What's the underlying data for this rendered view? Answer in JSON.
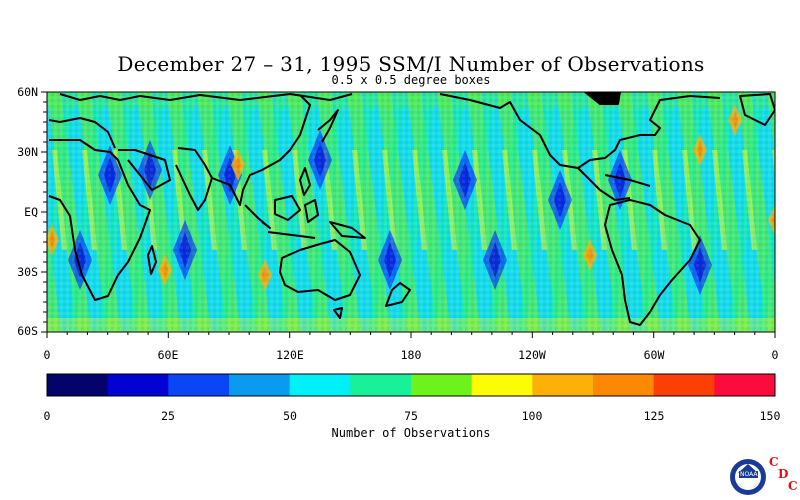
{
  "title": "December 27 – 31, 1995 SSM/I Number of Observations",
  "subtitle": "0.5 x 0.5 degree boxes",
  "map": {
    "lat_labels": [
      "60N",
      "30N",
      "EQ",
      "30S",
      "60S"
    ],
    "lon_labels": [
      "0",
      "60E",
      "120E",
      "180",
      "120W",
      "60W",
      "0"
    ]
  },
  "colorbar": {
    "label": "Number of Observations",
    "tick_labels": [
      "0",
      "25",
      "50",
      "75",
      "100",
      "125",
      "150"
    ],
    "colors": [
      "#03036b",
      "#0202d4",
      "#0a46f5",
      "#0a9af0",
      "#00f0f8",
      "#18f09a",
      "#6ef21c",
      "#fcfc04",
      "#fcb008",
      "#fc8804",
      "#fc4004",
      "#fc0c3c"
    ]
  },
  "logo": {
    "name": "noaa-logo",
    "text": "NOAA",
    "cdc_letters": [
      "C",
      "D",
      "C"
    ]
  }
}
